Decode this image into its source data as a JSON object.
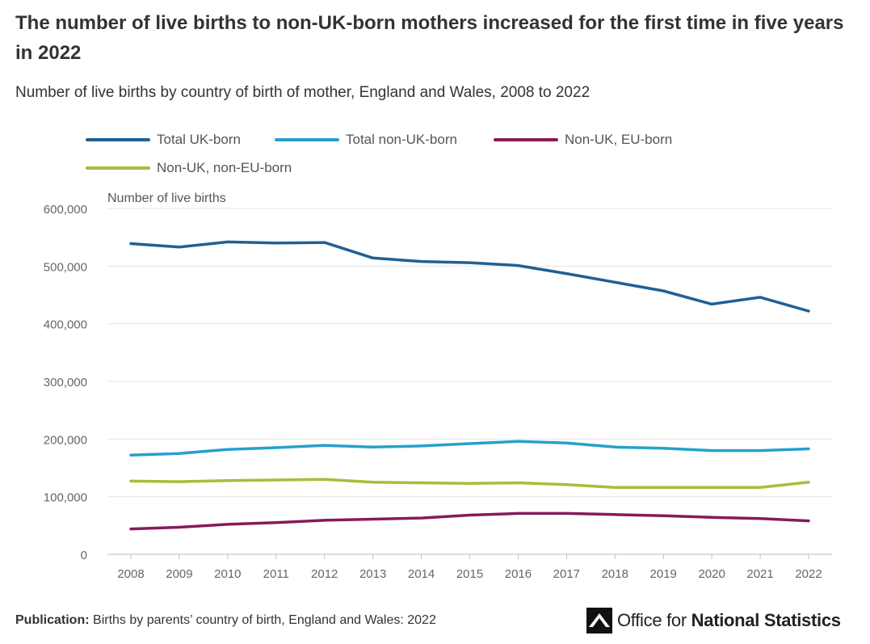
{
  "header": {
    "title": "The number of live births to non-UK-born mothers increased for the first time in five years in 2022",
    "subtitle": "Number of live births by country of birth of mother, England and Wales, 2008 to 2022"
  },
  "footer": {
    "publication_label": "Publication:",
    "publication_text": "Births by parents’ country of birth, England and Wales: 2022"
  },
  "logo": {
    "text_light": "Office for",
    "text_bold": "National Statistics",
    "icon": "ons-logo-icon"
  },
  "chart_data": {
    "type": "line",
    "title": "The number of live births to non-UK-born mothers increased for the first time in five years in 2022",
    "subtitle": "Number of live births by country of birth of mother, England and Wales, 2008 to 2022",
    "xlabel": "",
    "ylabel": "Number of live births",
    "x": [
      2008,
      2009,
      2010,
      2011,
      2012,
      2013,
      2014,
      2015,
      2016,
      2017,
      2018,
      2019,
      2020,
      2021,
      2022
    ],
    "ylim": [
      0,
      600000
    ],
    "yticks": [
      0,
      100000,
      200000,
      300000,
      400000,
      500000,
      600000
    ],
    "ytick_labels": [
      "0",
      "100,000",
      "200,000",
      "300,000",
      "400,000",
      "500,000",
      "600,000"
    ],
    "grid": "horizontal",
    "legend_position": "top",
    "series": [
      {
        "name": "Total UK-born",
        "color": "#206095",
        "values": [
          539000,
          533000,
          542000,
          540000,
          541000,
          514000,
          508000,
          506000,
          501000,
          487000,
          472000,
          457000,
          434000,
          446000,
          422000
        ]
      },
      {
        "name": "Total non-UK-born",
        "color": "#27a0cc",
        "values": [
          172000,
          175000,
          182000,
          185000,
          189000,
          186000,
          188000,
          192000,
          196000,
          193000,
          186000,
          184000,
          180000,
          180000,
          183000
        ]
      },
      {
        "name": "Non-UK, EU-born",
        "color": "#871a5b",
        "values": [
          44000,
          47000,
          52000,
          55000,
          59000,
          61000,
          63000,
          68000,
          71000,
          71000,
          69000,
          67000,
          64000,
          62000,
          58000
        ]
      },
      {
        "name": "Non-UK, non-EU-born",
        "color": "#a8bd3a",
        "values": [
          127000,
          126000,
          128000,
          129000,
          130000,
          125000,
          124000,
          123000,
          124000,
          121000,
          116000,
          116000,
          116000,
          116000,
          125000
        ]
      }
    ]
  }
}
